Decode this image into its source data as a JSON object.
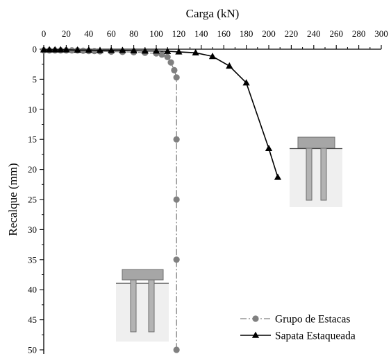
{
  "chart_data": {
    "type": "line",
    "xlabel": "Carga (kN)",
    "ylabel": "Recalque (mm)",
    "xlim": [
      0,
      300
    ],
    "ylim": [
      0,
      50
    ],
    "y_inverted": true,
    "x_axis_position": "top",
    "x_ticks": [
      0,
      20,
      40,
      60,
      80,
      100,
      120,
      140,
      160,
      180,
      200,
      220,
      240,
      260,
      280,
      300
    ],
    "y_ticks": [
      0,
      5,
      10,
      15,
      20,
      25,
      30,
      35,
      40,
      45,
      50
    ],
    "grid": false,
    "legend_position": "bottom-right",
    "series": [
      {
        "name": "Grupo de Estacas",
        "color": "#808080",
        "marker": "circle",
        "line_style": "dash-dot",
        "x": [
          0,
          5,
          10,
          15,
          20,
          25,
          30,
          35,
          40,
          45,
          50,
          60,
          70,
          80,
          90,
          100,
          105,
          110,
          113,
          116,
          118,
          118,
          118,
          118,
          118
        ],
        "y": [
          0.2,
          0.2,
          0.2,
          0.2,
          0.2,
          0.2,
          0.2,
          0.25,
          0.3,
          0.3,
          0.35,
          0.4,
          0.45,
          0.5,
          0.6,
          0.7,
          0.9,
          1.3,
          2.2,
          3.5,
          4.7,
          15,
          25,
          35,
          50
        ]
      },
      {
        "name": "Sapata Estaqueada",
        "color": "#000000",
        "marker": "triangle",
        "line_style": "solid",
        "x": [
          0,
          5,
          10,
          15,
          20,
          30,
          40,
          50,
          60,
          70,
          80,
          90,
          100,
          110,
          120,
          135,
          150,
          165,
          180,
          200,
          208
        ],
        "y": [
          0.1,
          0.1,
          0.1,
          0.1,
          0.1,
          0.15,
          0.15,
          0.2,
          0.2,
          0.2,
          0.25,
          0.3,
          0.3,
          0.35,
          0.45,
          0.6,
          1.2,
          2.8,
          5.6,
          16.5,
          21.3
        ]
      }
    ]
  }
}
